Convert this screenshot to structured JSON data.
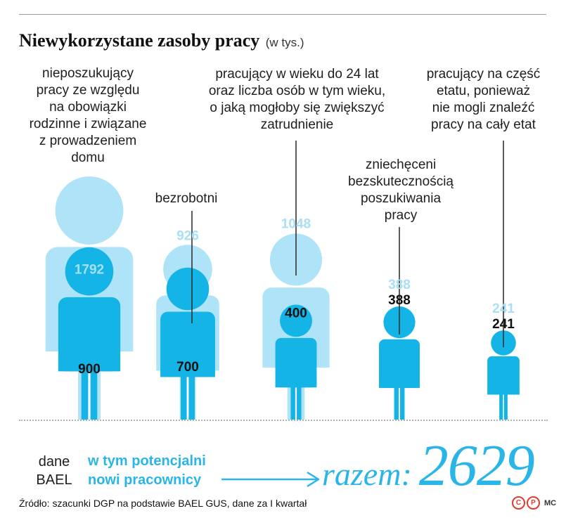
{
  "title": "Niewykorzystane zasoby pracy",
  "unit": "(w tys.)",
  "chart_data": {
    "type": "bar",
    "title": "Niewykorzystane zasoby pracy",
    "unit": "(w tys.)",
    "categories": [
      "nieposzukujący pracy ze względu na obowiązki rodzinne i związane z prowadzeniem domu",
      "bezrobotni",
      "pracujący w wieku do 24 lat oraz liczba osób w tym wieku, o jaką mogłoby się zwiększyć zatrudnienie",
      "zniechęceni bezskutecznością poszukiwania pracy",
      "pracujący na część etatu, ponieważ nie mogli znaleźć pracy na cały etat"
    ],
    "series": [
      {
        "name": "dane BAEL",
        "values": [
          1792,
          926,
          1048,
          388,
          241
        ],
        "color": "#aee3f8"
      },
      {
        "name": "w tym potencjalni nowi pracownicy",
        "values": [
          900,
          700,
          400,
          388,
          241
        ],
        "color": "#14b4e6"
      }
    ],
    "total_label": "razem:",
    "total": 2629
  },
  "labels": [
    "nieposzukujący\npracy ze względu\nna obowiązki\nrodzinne i związane\nz prowadzeniem\ndomu",
    "bezrobotni",
    "pracujący w wieku do 24 lat\noraz liczba osób w tym wieku,\no jaką mogłoby się zwiększyć\nzatrudnienie",
    "zniechęceni\nbezskutecznością\nposzukiwania\npracy",
    "pracujący na część\netatu, ponieważ\nnie mogli znaleźć\npracy na cały etat"
  ],
  "legend": {
    "bael": "dane\nBAEL",
    "new_workers": "w tym potencjalni\nnowi pracownicy"
  },
  "total": {
    "label": "razem:",
    "value": "2629"
  },
  "source": "Źródło: szacunki DGP na podstawie BAEL GUS, dane za I kwartał",
  "logo": {
    "c": "C",
    "p": "P",
    "text": "MC"
  },
  "colors": {
    "light": "#aee3f8",
    "dark": "#14b4e6",
    "accent": "#29b5e8",
    "light_text": "#a7dff5",
    "dark_text": "#111111"
  }
}
